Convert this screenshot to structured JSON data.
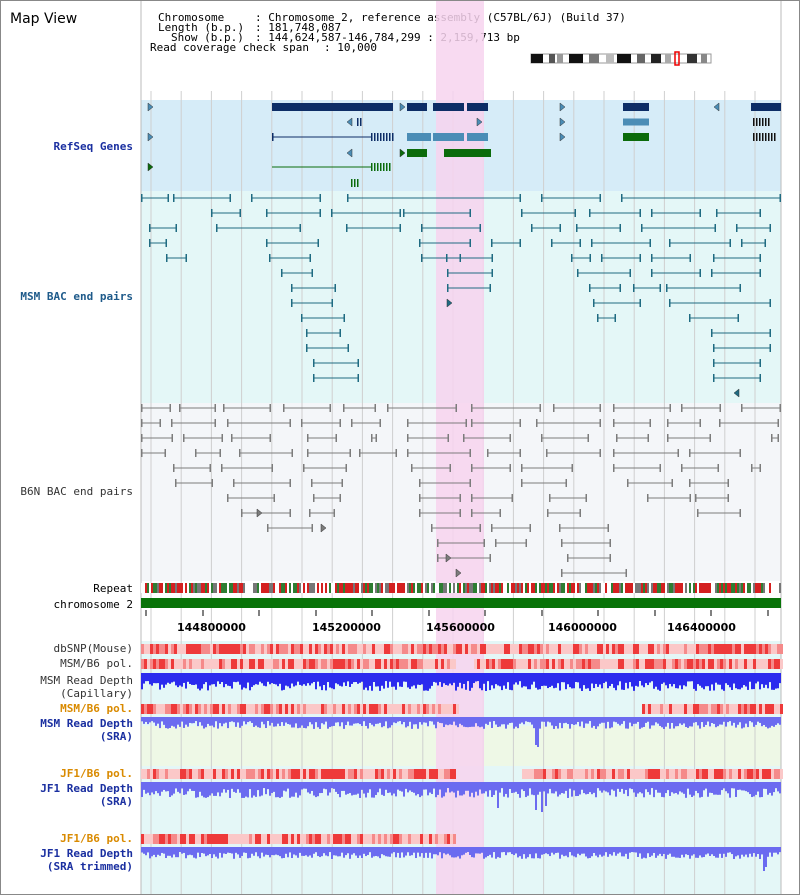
{
  "view_title": "Map View",
  "info": {
    "chromosome_label": "Chromosome",
    "chromosome_value": "Chromosome 2, reference assembly (C57BL/6J) (Build 37)",
    "length_label": "Length (b.p.)",
    "length_value": "181,748,087",
    "show_label": "Show (b.p.)",
    "show_value": "144,624,587-146,784,299 : 2,159,713 bp",
    "coverage_label": "Read coverage check span",
    "coverage_value": "10,000"
  },
  "tracks": {
    "refseq": "RefSeq Genes",
    "msm_bac": "MSM BAC end pairs",
    "b6n_bac": "B6N BAC end pairs",
    "repeat": "Repeat",
    "chromosome": "chromosome 2",
    "dbsnp": "dbSNP(Mouse)",
    "msm_b6_pol": "MSM/B6 pol.",
    "msm_read_depth_cap": "MSM Read Depth\n(Capillary)",
    "msm_b6_pol_2": "MSM/B6 pol.",
    "msm_read_depth_sra": "MSM Read Depth\n(SRA)",
    "jf1_b6_pol": "JF1/B6 pol.",
    "jf1_read_depth_sra": "JF1 Read Depth\n(SRA)",
    "jf1_b6_pol_2": "JF1/B6 pol.",
    "jf1_read_depth_trim": "JF1 Read Depth\n(SRA trimmed)"
  },
  "axis_ticks": [
    "144800000",
    "145200000",
    "145600000",
    "146000000",
    "146400000"
  ],
  "colors": {
    "refseq_bg": "#d6ecf8",
    "msm_bg": "#e4f7f7",
    "b6n_bg": "#f4f6f9",
    "highlight": "#f7d3ee",
    "gene_dark": "#0d2d66",
    "gene_mid": "#4b8db6",
    "gene_green": "#0b6b0b",
    "bac_msm": "#1f6b82",
    "bac_b6n": "#7c7c7c",
    "chromosome_bar": "#087308",
    "depth_blue": "#2b2bee",
    "depth_violet": "#6b6bf0",
    "pol_red": "#ee3a3a",
    "label_blue": "#1a2fa0",
    "label_orange": "#d98a00",
    "label_teal": "#1e5a8a"
  }
}
